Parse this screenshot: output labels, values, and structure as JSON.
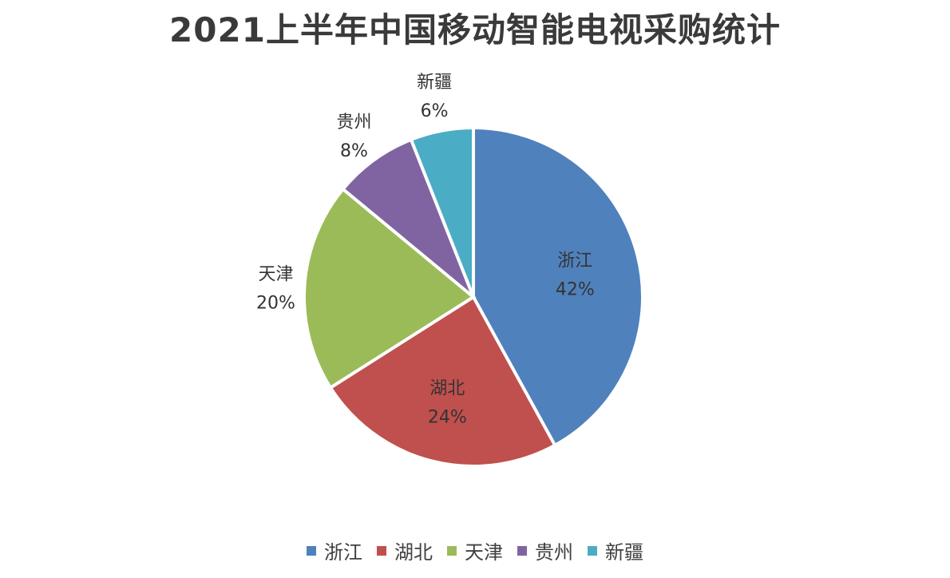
{
  "chart_data": {
    "type": "pie",
    "title": "2021上半年中国移动智能电视采购统计",
    "slices": [
      {
        "label": "浙江",
        "value": 42,
        "percent_label": "42%",
        "color": "#4f81bd"
      },
      {
        "label": "湖北",
        "value": 24,
        "percent_label": "24%",
        "color": "#c0504d"
      },
      {
        "label": "天津",
        "value": 20,
        "percent_label": "20%",
        "color": "#9bbb59"
      },
      {
        "label": "贵州",
        "value": 8,
        "percent_label": "8%",
        "color": "#8064a2"
      },
      {
        "label": "新疆",
        "value": 6,
        "percent_label": "6%",
        "color": "#4bacc6"
      }
    ],
    "legend_position": "bottom"
  }
}
